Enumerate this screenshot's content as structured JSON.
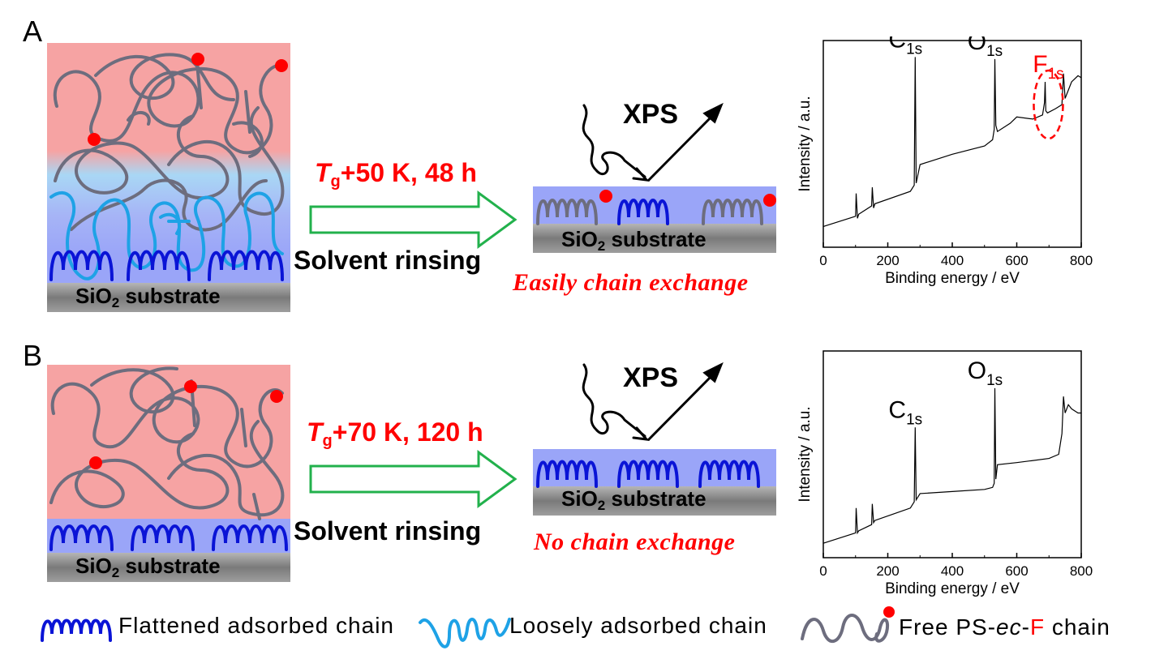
{
  "panel_a": {
    "letter": "A",
    "condition_base": "T",
    "condition_sub": "g",
    "condition_rest": "+50 K, 48 h",
    "rinse_label": "Solvent rinsing",
    "exchange_label": "Easily chain exchange",
    "xps_label": "XPS",
    "substrate_main": "SiO",
    "substrate_sub": "2",
    "substrate_rest": " substrate"
  },
  "panel_b": {
    "letter": "B",
    "condition_base": "T",
    "condition_sub": "g",
    "condition_rest": "+70 K, 120 h",
    "rinse_label": "Solvent rinsing",
    "exchange_label": "No chain exchange",
    "xps_label": "XPS",
    "substrate_main": "SiO",
    "substrate_sub": "2",
    "substrate_rest": " substrate"
  },
  "legend": {
    "flattened": "Flattened adsorbed chain",
    "loosely": "Loosely adsorbed chain",
    "free_prefix": "Free PS-",
    "free_ec": "ec",
    "free_dash": "-",
    "free_f": "F",
    "free_suffix": " chain"
  },
  "colors": {
    "bulk_pink": "#f6a3a3",
    "loose_blue": "#a9d7f5",
    "flat_layer": "#9aa5f8",
    "substrate_gray": "#8a8a8a",
    "flattened_chain": "#0a14d6",
    "loose_chain": "#1ea2e6",
    "free_chain": "#6d6d7e",
    "end_group": "#ff0000",
    "arrow_green": "#22b14c"
  },
  "chart_data": [
    {
      "type": "line",
      "xlabel": "Binding energy / eV",
      "ylabel": "Intensity / a.u.",
      "xlim": [
        0,
        800
      ],
      "xticks": [
        0,
        200,
        400,
        600,
        800
      ],
      "annotations": [
        {
          "text": "C",
          "sub": "1s",
          "x": 285,
          "color": "#000000"
        },
        {
          "text": "O",
          "sub": "1s",
          "x": 532,
          "color": "#000000"
        },
        {
          "text": "F",
          "sub": "1s",
          "x": 688,
          "color": "#ff0000"
        }
      ],
      "x": [
        0,
        100,
        102,
        106,
        110,
        150,
        152,
        156,
        160,
        270,
        282,
        285,
        288,
        300,
        400,
        500,
        525,
        530,
        532,
        535,
        540,
        580,
        600,
        650,
        680,
        686,
        688,
        690,
        695,
        720,
        740,
        745,
        750,
        770,
        790,
        800
      ],
      "y": [
        0.1,
        0.15,
        0.26,
        0.14,
        0.16,
        0.2,
        0.29,
        0.19,
        0.21,
        0.27,
        0.3,
        0.92,
        0.31,
        0.4,
        0.45,
        0.49,
        0.52,
        0.57,
        0.91,
        0.59,
        0.56,
        0.6,
        0.63,
        0.62,
        0.64,
        0.7,
        0.8,
        0.66,
        0.65,
        0.67,
        0.69,
        0.84,
        0.72,
        0.8,
        0.83,
        0.82
      ]
    },
    {
      "type": "line",
      "xlabel": "Binding energy / eV",
      "ylabel": "Intensity / a.u.",
      "xlim": [
        0,
        800
      ],
      "xticks": [
        0,
        200,
        400,
        600,
        800
      ],
      "annotations": [
        {
          "text": "C",
          "sub": "1s",
          "x": 285,
          "color": "#000000"
        },
        {
          "text": "O",
          "sub": "1s",
          "x": 532,
          "color": "#000000"
        }
      ],
      "x": [
        0,
        100,
        102,
        106,
        110,
        150,
        152,
        156,
        160,
        270,
        282,
        285,
        288,
        300,
        400,
        500,
        525,
        530,
        532,
        535,
        540,
        600,
        700,
        730,
        740,
        745,
        750,
        760,
        770,
        790,
        800
      ],
      "y": [
        0.07,
        0.12,
        0.24,
        0.12,
        0.13,
        0.16,
        0.26,
        0.17,
        0.18,
        0.24,
        0.27,
        0.63,
        0.28,
        0.31,
        0.32,
        0.33,
        0.34,
        0.36,
        0.82,
        0.38,
        0.45,
        0.46,
        0.48,
        0.5,
        0.6,
        0.78,
        0.7,
        0.74,
        0.72,
        0.7,
        0.7
      ]
    }
  ]
}
